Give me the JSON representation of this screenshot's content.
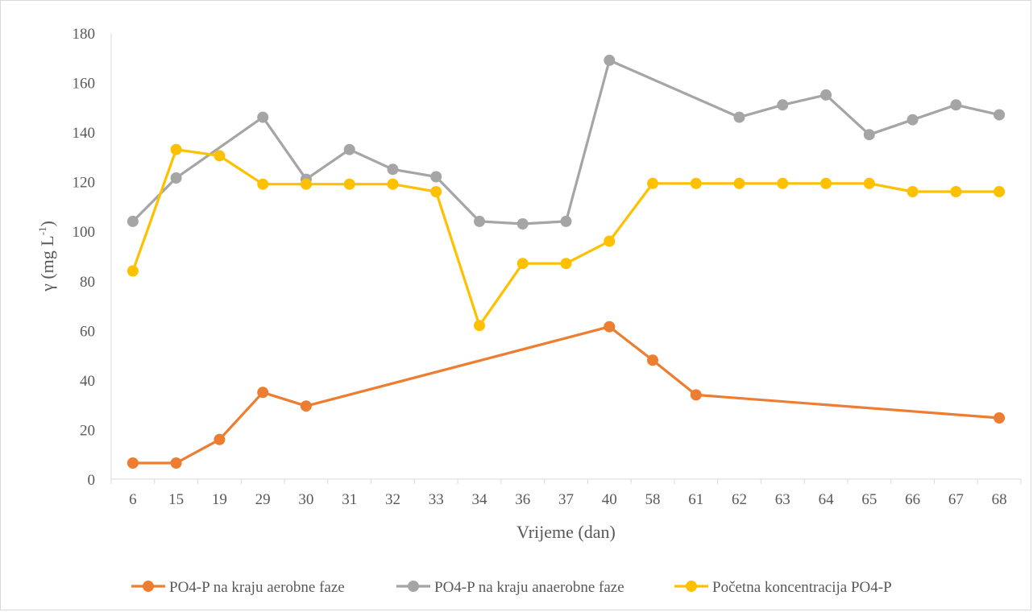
{
  "chart_data": {
    "type": "line",
    "title": "",
    "xlabel": "Vrijeme (dan)",
    "ylabel_main": "γ (mg L",
    "ylabel_sup": "-1",
    "ylabel_close": ")",
    "ylim": [
      0,
      180
    ],
    "ytick_step": 20,
    "grid": false,
    "legend_position": "bottom",
    "categories": [
      "6",
      "15",
      "19",
      "29",
      "30",
      "31",
      "32",
      "33",
      "34",
      "36",
      "37",
      "40",
      "58",
      "61",
      "62",
      "63",
      "64",
      "65",
      "66",
      "67",
      "68"
    ],
    "yticks": [
      "0",
      "20",
      "40",
      "60",
      "80",
      "100",
      "120",
      "140",
      "160",
      "180"
    ],
    "series": [
      {
        "name": "PO4-P na kraju aerobne faze",
        "color": "#ED7D31",
        "values": [
          6.5,
          6.5,
          16,
          35,
          29.5,
          null,
          null,
          null,
          null,
          null,
          null,
          61.5,
          48,
          34,
          null,
          null,
          null,
          null,
          null,
          null,
          24.7
        ]
      },
      {
        "name": "PO4-P na kraju anaerobne faze",
        "color": "#A5A5A5",
        "values": [
          104,
          121.5,
          null,
          146,
          121,
          133,
          125,
          122,
          104,
          103,
          104,
          169,
          null,
          null,
          146,
          151,
          155,
          139,
          145,
          151,
          147
        ]
      },
      {
        "name": "Početna koncentracija PO4-P",
        "color": "#FFC000",
        "values": [
          84,
          133,
          130.5,
          119,
          119,
          119,
          119,
          116,
          62,
          87,
          87,
          96,
          119.3,
          119.3,
          119.3,
          119.3,
          119.3,
          119.3,
          116,
          116,
          116
        ]
      }
    ]
  }
}
